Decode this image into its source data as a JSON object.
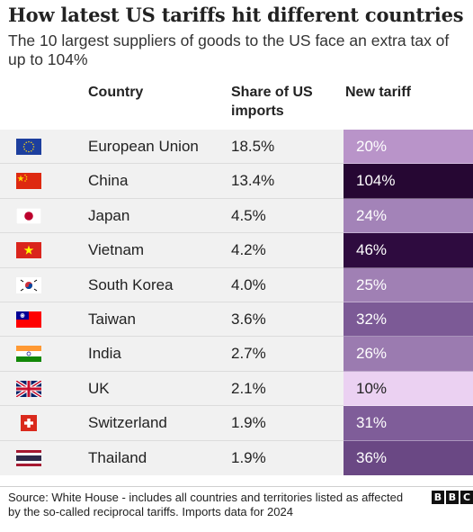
{
  "title": "How latest US tariffs hit different countries",
  "subtitle": "The 10 largest suppliers of goods to the US face an extra tax of up to 104%",
  "chart_data": {
    "type": "table",
    "columns": [
      "Country",
      "Share of US imports",
      "New tariff"
    ],
    "rows": [
      {
        "country": "European Union",
        "share": "18.5%",
        "tariff": "20%",
        "share_value": 18.5,
        "tariff_value": 20,
        "flag": "eu-flag-icon"
      },
      {
        "country": "China",
        "share": "13.4%",
        "tariff": "104%",
        "share_value": 13.4,
        "tariff_value": 104,
        "flag": "china-flag-icon"
      },
      {
        "country": "Japan",
        "share": "4.5%",
        "tariff": "24%",
        "share_value": 4.5,
        "tariff_value": 24,
        "flag": "japan-flag-icon"
      },
      {
        "country": "Vietnam",
        "share": "4.2%",
        "tariff": "46%",
        "share_value": 4.2,
        "tariff_value": 46,
        "flag": "vietnam-flag-icon"
      },
      {
        "country": "South Korea",
        "share": "4.0%",
        "tariff": "25%",
        "share_value": 4.0,
        "tariff_value": 25,
        "flag": "south-korea-flag-icon"
      },
      {
        "country": "Taiwan",
        "share": "3.6%",
        "tariff": "32%",
        "share_value": 3.6,
        "tariff_value": 32,
        "flag": "taiwan-flag-icon"
      },
      {
        "country": "India",
        "share": "2.7%",
        "tariff": "26%",
        "share_value": 2.7,
        "tariff_value": 26,
        "flag": "india-flag-icon"
      },
      {
        "country": "UK",
        "share": "2.1%",
        "tariff": "10%",
        "share_value": 2.1,
        "tariff_value": 10,
        "flag": "uk-flag-icon"
      },
      {
        "country": "Switzerland",
        "share": "1.9%",
        "tariff": "31%",
        "share_value": 1.9,
        "tariff_value": 31,
        "flag": "switzerland-flag-icon"
      },
      {
        "country": "Thailand",
        "share": "1.9%",
        "tariff": "36%",
        "share_value": 1.9,
        "tariff_value": 36,
        "flag": "thailand-flag-icon"
      }
    ],
    "tariff_colors": {
      "10%": "#ebd1f2",
      "20%": "#b994c9",
      "24%": "#a383b8",
      "25%": "#a080b4",
      "26%": "#9b7bb0",
      "31%": "#7f5d99",
      "32%": "#7c5a96",
      "36%": "#6a4884",
      "46%": "#2e0b3f",
      "104%": "#260733"
    }
  },
  "footer": {
    "source": "Source: White House - includes all countries and territories listed as affected by the so-called reciprocal tariffs. Imports data for 2024",
    "logo": [
      "B",
      "B",
      "C"
    ]
  }
}
